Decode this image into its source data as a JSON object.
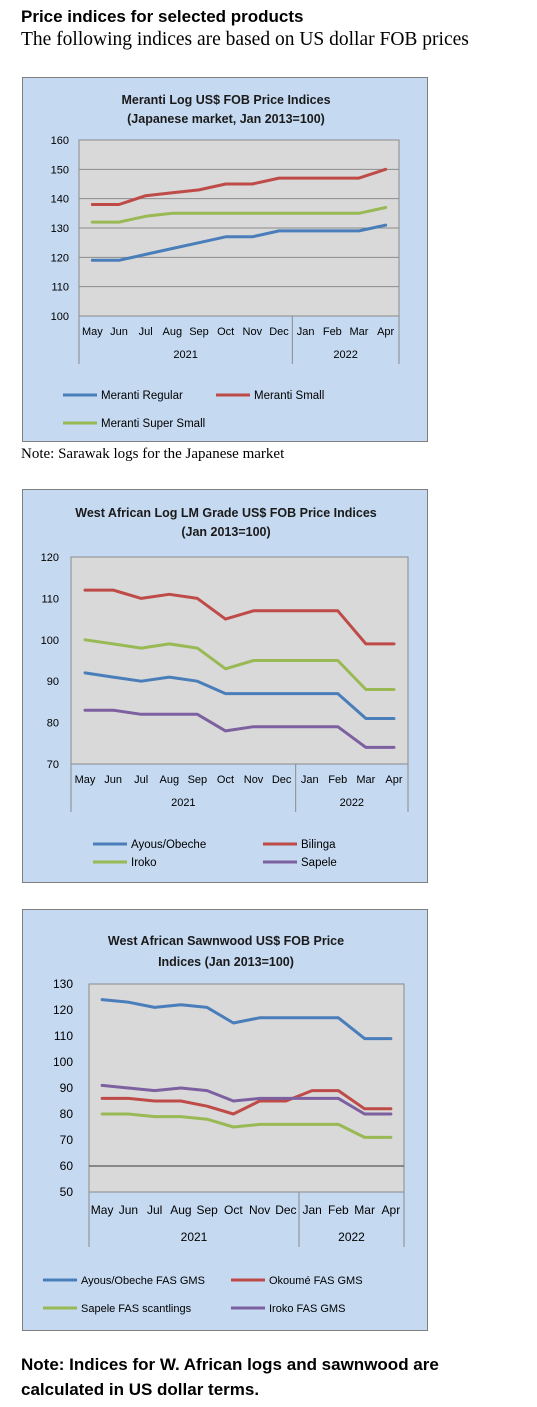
{
  "header": {
    "title": "Price indices for selected products",
    "subtitle": "The following indices are based on US dollar FOB prices"
  },
  "note1": "Note: Sarawak logs for the Japanese market",
  "note2": "Note: Indices for W. African logs and sawnwood are calculated in US dollar terms.",
  "chart_data": [
    {
      "type": "line",
      "title": [
        "Meranti Log US$ FOB Price Indices",
        "(Japanese market, Jan 2013=100)"
      ],
      "categories": [
        "May",
        "Jun",
        "Jul",
        "Aug",
        "Sep",
        "Oct",
        "Nov",
        "Dec",
        "Jan",
        "Feb",
        "Mar",
        "Apr"
      ],
      "year_groups": [
        {
          "label": "2021",
          "start": 0,
          "end": 7
        },
        {
          "label": "2022",
          "start": 8,
          "end": 11
        }
      ],
      "ylim": [
        100,
        160
      ],
      "yticks": [
        "100",
        "110",
        "120",
        "130",
        "140",
        "150",
        "160"
      ],
      "grid": true,
      "legend_placement": "bottom",
      "series": [
        {
          "name": "Meranti Regular",
          "color": "#4a7ebb",
          "values": [
            119,
            119,
            121,
            123,
            125,
            127,
            127,
            129,
            129,
            129,
            129,
            131
          ]
        },
        {
          "name": "Meranti Small",
          "color": "#be4b48",
          "values": [
            138,
            138,
            141,
            142,
            143,
            145,
            145,
            147,
            147,
            147,
            147,
            150
          ]
        },
        {
          "name": "Meranti Super Small",
          "color": "#98b954",
          "values": [
            132,
            132,
            134,
            135,
            135,
            135,
            135,
            135,
            135,
            135,
            135,
            137
          ]
        }
      ]
    },
    {
      "type": "line",
      "title": [
        "West African Log LM Grade US$ FOB Price Indices",
        "(Jan 2013=100)"
      ],
      "categories": [
        "May",
        "Jun",
        "Jul",
        "Aug",
        "Sep",
        "Oct",
        "Nov",
        "Dec",
        "Jan",
        "Feb",
        "Mar",
        "Apr"
      ],
      "year_groups": [
        {
          "label": "2021",
          "start": 0,
          "end": 7
        },
        {
          "label": "2022",
          "start": 8,
          "end": 11
        }
      ],
      "ylim": [
        70,
        120
      ],
      "yticks": [
        "70",
        "80",
        "90",
        "100",
        "110",
        "120"
      ],
      "grid": false,
      "legend_placement": "bottom",
      "series": [
        {
          "name": "Ayous/Obeche",
          "color": "#4a7ebb",
          "values": [
            92,
            91,
            90,
            91,
            90,
            87,
            87,
            87,
            87,
            87,
            81,
            81
          ]
        },
        {
          "name": "Bilinga",
          "color": "#be4b48",
          "values": [
            112,
            112,
            110,
            111,
            110,
            105,
            107,
            107,
            107,
            107,
            99,
            99
          ]
        },
        {
          "name": "Iroko",
          "color": "#98b954",
          "values": [
            100,
            99,
            98,
            99,
            98,
            93,
            95,
            95,
            95,
            95,
            88,
            88
          ]
        },
        {
          "name": "Sapele",
          "color": "#7d60a0",
          "values": [
            83,
            83,
            82,
            82,
            82,
            78,
            79,
            79,
            79,
            79,
            74,
            74
          ]
        }
      ]
    },
    {
      "type": "line",
      "title": [
        "West African Sawnwood US$ FOB Price",
        "Indices (Jan 2013=100)"
      ],
      "categories": [
        "May",
        "Jun",
        "Jul",
        "Aug",
        "Sep",
        "Oct",
        "Nov",
        "Dec",
        "Jan",
        "Feb",
        "Mar",
        "Apr"
      ],
      "year_groups": [
        {
          "label": "2021",
          "start": 0,
          "end": 7
        },
        {
          "label": "2022",
          "start": 8,
          "end": 11
        }
      ],
      "ylim": [
        50,
        130
      ],
      "yticks": [
        "50",
        "60",
        "70",
        "80",
        "90",
        "100",
        "110",
        "120",
        "130"
      ],
      "grid": false,
      "baseline_value": 60,
      "legend_placement": "bottom",
      "series": [
        {
          "name": "Ayous/Obeche  FAS GMS",
          "color": "#4a7ebb",
          "values": [
            124,
            123,
            121,
            122,
            121,
            115,
            117,
            117,
            117,
            117,
            109,
            109
          ]
        },
        {
          "name": "Okoumé FAS GMS",
          "color": "#be4b48",
          "values": [
            86,
            86,
            85,
            85,
            83,
            80,
            85,
            85,
            89,
            89,
            82,
            82
          ]
        },
        {
          "name": "Sapele FAS scantlings",
          "color": "#98b954",
          "values": [
            80,
            80,
            79,
            79,
            78,
            75,
            76,
            76,
            76,
            76,
            71,
            71
          ]
        },
        {
          "name": "Iroko FAS GMS",
          "color": "#7d60a0",
          "values": [
            91,
            90,
            89,
            90,
            89,
            85,
            86,
            86,
            86,
            86,
            80,
            80
          ]
        }
      ]
    }
  ]
}
